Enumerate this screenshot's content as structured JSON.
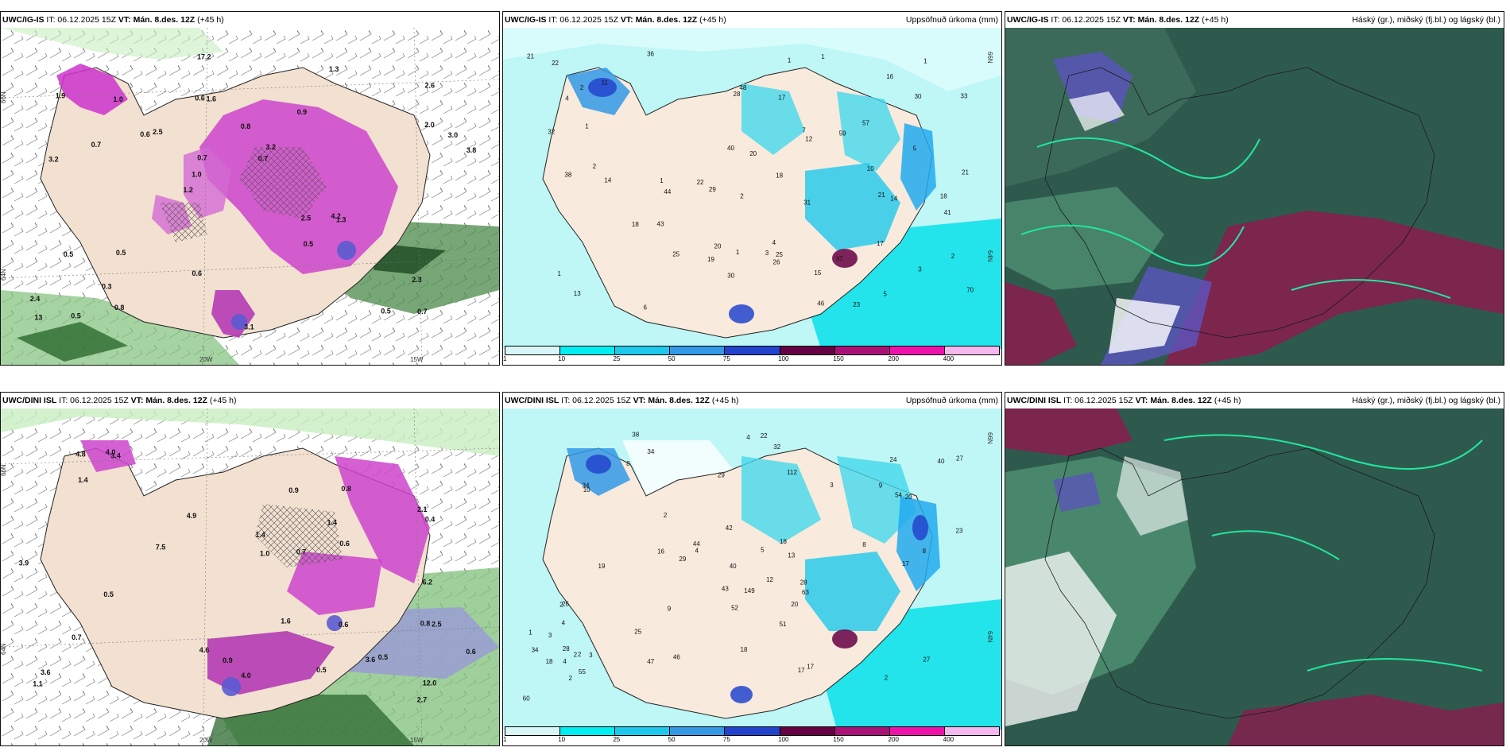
{
  "panels": [
    {
      "id": "p1",
      "model": "UWC/IG-IS",
      "it": "IT: 06.12.2025 15Z",
      "vt": "VT: Mán. 8.des. 12Z",
      "lead": "(+45 h)",
      "variable": ""
    },
    {
      "id": "p2",
      "model": "UWC/IG-IS",
      "it": "IT: 06.12.2025 15Z",
      "vt": "VT: Mán. 8.des. 12Z",
      "lead": "(+45 h)",
      "variable": "Uppsöfnuð úrkoma (mm)"
    },
    {
      "id": "p3",
      "model": "UWC/IG-IS",
      "it": "IT: 06.12.2025 15Z",
      "vt": "VT: Mán. 8.des. 12Z",
      "lead": "(+45 h)",
      "variable": "Háský (gr.), miðský (fj.bl.) og lágský (bl.)"
    },
    {
      "id": "p4",
      "model": "UWC/DINI ISL",
      "it": "IT: 06.12.2025 15Z",
      "vt": "VT: Mán. 8.des. 12Z",
      "lead": "(+45 h)",
      "variable": ""
    },
    {
      "id": "p5",
      "model": "UWC/DINI ISL",
      "it": "IT: 06.12.2025 15Z",
      "vt": "VT: Mán. 8.des. 12Z",
      "lead": "(+45 h)",
      "variable": "Uppsöfnuð úrkoma (mm)"
    },
    {
      "id": "p6",
      "model": "UWC/DINI ISL",
      "it": "IT: 06.12.2025 15Z",
      "vt": "VT: Mán. 8.des. 12Z",
      "lead": "(+45 h)",
      "variable": "Háský (gr.), miðský (fj.bl.) og lágský (bl.)"
    }
  ],
  "precip_colorbar": {
    "labels": [
      "1",
      "10",
      "25",
      "50",
      "75",
      "100",
      "150",
      "200",
      "400"
    ],
    "colors": [
      "#d8f6f8",
      "#00eef2",
      "#1ec8ec",
      "#3399e6",
      "#2244cc",
      "#660044",
      "#aa1177",
      "#ee11aa",
      "#f5b8ee"
    ]
  },
  "axis_labels": {
    "lat_66": "66N",
    "lat_64": "64N",
    "lat_65": "65N",
    "lon_20": "20W",
    "lon_15": "15W"
  },
  "precip_top_values": [
    "3",
    "2",
    "4",
    "1",
    "37",
    "59",
    "23",
    "70",
    "11",
    "15",
    "2",
    "1",
    "1",
    "3",
    "20",
    "13",
    "28",
    "30",
    "25",
    "36",
    "33",
    "46",
    "43",
    "22",
    "19",
    "5",
    "48",
    "41",
    "44",
    "26",
    "25",
    "21",
    "7",
    "31",
    "14",
    "21",
    "40",
    "6",
    "32",
    "22",
    "17",
    "38",
    "57",
    "29",
    "30",
    "1",
    "1",
    "1",
    "2",
    "1",
    "2",
    "5",
    "18",
    "14",
    "18",
    "18",
    "16",
    "17",
    "20",
    "21",
    "10",
    "12",
    "4"
  ],
  "precip_bottom_values": [
    "8",
    "8",
    "4",
    "2",
    "4",
    "10",
    "13",
    "47",
    "9",
    "40",
    "9",
    "34",
    "34",
    "27",
    "46",
    "32",
    "55",
    "54",
    "22",
    "17",
    "26",
    "44",
    "8",
    "42",
    "43",
    "27",
    "25",
    "18",
    "29",
    "24",
    "12",
    "52",
    "18",
    "38",
    "51",
    "112",
    "149",
    "60",
    "40",
    "63",
    "28",
    "29",
    "23",
    "19",
    "17",
    "20",
    "18",
    "34",
    "28",
    "17",
    "16",
    "20",
    "3",
    "1",
    "2",
    "3",
    "4",
    "5",
    "4",
    "2",
    "3",
    "2",
    "2",
    "2"
  ],
  "top_left_values": [
    "0.7",
    "3.2",
    "2.6",
    "1.2",
    "0.9",
    "0.5",
    "0.6",
    "0.8",
    "0.5",
    "2.5",
    "2.4",
    "0.3",
    "1.6",
    "3.2",
    "1.3",
    "1.9",
    "17.2",
    "3.8",
    "2.5",
    "2.0",
    "1.0",
    "0.6",
    "0.7",
    "1.0",
    "1.3",
    "0.5",
    "0.5",
    "2.3",
    "4.2",
    "3.1",
    "0.6",
    "0.7",
    "0.5",
    "0.8",
    "3.0",
    "0.7",
    "13"
  ],
  "bottom_left_values": [
    "0.7",
    "0.7",
    "0.8",
    "0.6",
    "0.9",
    "0.5",
    "1.4",
    "1.4",
    "2.5",
    "3.6",
    "3.4",
    "1.6",
    "6.2",
    "4.0",
    "4.8",
    "4.6",
    "2.7",
    "2.1",
    "12.0",
    "0.6",
    "0.5",
    "0.8",
    "7.5",
    "4.9",
    "4.0",
    "3.9",
    "3.6",
    "0.5",
    "1.4",
    "0.6",
    "0.9",
    "1.1",
    "1.0",
    "0.4"
  ]
}
